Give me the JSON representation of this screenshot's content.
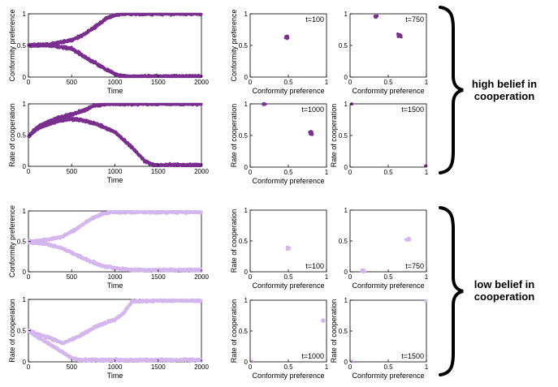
{
  "colors": {
    "high": "#7a2f8e",
    "low": "#d4b6ee"
  },
  "labels": {
    "time": "Time",
    "conformity_preference": "Conformity preference",
    "rate_of_cooperation": "Rate of cooperation"
  },
  "groups": [
    {
      "label_line1": "high belief in",
      "label_line2": "cooperation"
    },
    {
      "label_line1": "low belief in",
      "label_line2": "cooperation"
    }
  ],
  "chart_data": [
    {
      "type": "scatter",
      "group": "high",
      "ylabel": "Conformity preference",
      "xlabel": "Time",
      "xlim": [
        0,
        2000
      ],
      "ylim": [
        0,
        1
      ],
      "xticks": [
        "0",
        "500",
        "1000",
        "1500",
        "2000"
      ],
      "yticks": [
        "0",
        "0.5",
        "1"
      ],
      "series": [
        {
          "x": [
            0,
            250,
            500,
            650,
            800,
            900,
            1000,
            1100,
            2000
          ],
          "y": [
            0.5,
            0.52,
            0.58,
            0.68,
            0.82,
            0.93,
            0.98,
            1.0,
            1.0
          ]
        },
        {
          "x": [
            0,
            250,
            500,
            650,
            800,
            900,
            1000,
            1050,
            1100,
            2000
          ],
          "y": [
            0.5,
            0.5,
            0.45,
            0.32,
            0.2,
            0.12,
            0.05,
            0.02,
            0.01,
            0.01
          ]
        }
      ]
    },
    {
      "type": "scatter",
      "group": "high",
      "ylabel": "Conformity preference",
      "xlabel": "Conformity preference",
      "annotation": "t=100",
      "xlim": [
        0,
        1
      ],
      "ylim": [
        0,
        1
      ],
      "xticks": [
        "0",
        "0.5",
        "1"
      ],
      "yticks": [
        "0",
        "0.5",
        "1"
      ],
      "series": [
        {
          "clusters": [
            {
              "x": 0.48,
              "y": 0.63,
              "spread": 0.04,
              "count": 18
            }
          ]
        }
      ]
    },
    {
      "type": "scatter",
      "group": "high",
      "ylabel": "",
      "xlabel": "Conformity preference",
      "annotation": "t=750",
      "xlim": [
        0,
        1
      ],
      "ylim": [
        0,
        1
      ],
      "xticks": [
        "0",
        "0.5",
        "1"
      ],
      "yticks": [
        "0",
        "0.5",
        "1"
      ],
      "series": [
        {
          "clusters": [
            {
              "x": 0.34,
              "y": 0.96,
              "spread": 0.04,
              "count": 10
            },
            {
              "x": 0.65,
              "y": 0.66,
              "spread": 0.05,
              "count": 18
            }
          ]
        }
      ]
    },
    {
      "type": "scatter",
      "group": "high",
      "ylabel": "Rate of cooperation",
      "xlabel": "Time",
      "xlim": [
        0,
        2000
      ],
      "ylim": [
        0,
        1
      ],
      "xticks": [
        "0",
        "500",
        "1000",
        "1500",
        "2000"
      ],
      "yticks": [
        "0",
        "0.5",
        "1"
      ],
      "series": [
        {
          "x": [
            0,
            100,
            200,
            350,
            500,
            650,
            750,
            900,
            1100,
            2000
          ],
          "y": [
            0.48,
            0.62,
            0.7,
            0.78,
            0.83,
            0.9,
            0.97,
            1.0,
            1.0,
            1.0
          ]
        },
        {
          "x": [
            0,
            100,
            200,
            350,
            500,
            650,
            800,
            1000,
            1200,
            1350,
            1450,
            2000
          ],
          "y": [
            0.48,
            0.6,
            0.66,
            0.73,
            0.76,
            0.73,
            0.67,
            0.55,
            0.3,
            0.08,
            0.02,
            0.02
          ]
        }
      ]
    },
    {
      "type": "scatter",
      "group": "high",
      "ylabel": "Rate of cooperation",
      "xlabel": "Conformity preference",
      "annotation": "t=1000",
      "xlim": [
        0,
        1
      ],
      "ylim": [
        0,
        1
      ],
      "xticks": [
        "0",
        "0.5",
        "1"
      ],
      "yticks": [
        "0",
        "0.5",
        "1"
      ],
      "series": [
        {
          "clusters": [
            {
              "x": 0.18,
              "y": 1.0,
              "spread": 0.04,
              "count": 10
            },
            {
              "x": 0.8,
              "y": 0.54,
              "spread": 0.04,
              "count": 18
            }
          ]
        }
      ]
    },
    {
      "type": "scatter",
      "group": "high",
      "ylabel": "Rate of cooperation",
      "xlabel": "",
      "annotation": "t=1500",
      "xlim": [
        0,
        1
      ],
      "ylim": [
        0,
        1
      ],
      "xticks": [
        "0",
        "0.5",
        "1"
      ],
      "yticks": [
        "0",
        "0.5",
        "1"
      ],
      "series": [
        {
          "clusters": [
            {
              "x": 0.02,
              "y": 1.0,
              "spread": 0.01,
              "count": 6
            },
            {
              "x": 0.99,
              "y": 0.02,
              "spread": 0.01,
              "count": 5
            }
          ]
        }
      ]
    },
    {
      "type": "scatter",
      "group": "low",
      "ylabel": "Conformity preference",
      "xlabel": "Time",
      "xlim": [
        0,
        2000
      ],
      "ylim": [
        0,
        1
      ],
      "xticks": [
        "0",
        "500",
        "1000",
        "1500",
        "2000"
      ],
      "yticks": [
        "0",
        "0.5",
        "1"
      ],
      "series": [
        {
          "x": [
            0,
            200,
            400,
            550,
            700,
            850,
            950,
            2000
          ],
          "y": [
            0.5,
            0.52,
            0.58,
            0.7,
            0.85,
            0.95,
            0.98,
            0.98
          ]
        },
        {
          "x": [
            0,
            200,
            400,
            550,
            700,
            850,
            1000,
            1200,
            2000
          ],
          "y": [
            0.48,
            0.46,
            0.38,
            0.28,
            0.18,
            0.1,
            0.06,
            0.03,
            0.03
          ]
        }
      ]
    },
    {
      "type": "scatter",
      "group": "low",
      "ylabel": "Rate of cooperation",
      "xlabel": "Conformity preference",
      "annotation": "t=100",
      "xlim": [
        0,
        1
      ],
      "ylim": [
        0,
        1
      ],
      "xticks": [
        "0",
        "0.5",
        "1"
      ],
      "yticks": [
        "0",
        "0.5",
        "1"
      ],
      "series": [
        {
          "clusters": [
            {
              "x": 0.5,
              "y": 0.38,
              "spread": 0.04,
              "count": 16
            }
          ]
        }
      ]
    },
    {
      "type": "scatter",
      "group": "low",
      "ylabel": "",
      "xlabel": "Conformity preference",
      "annotation": "t=750",
      "xlim": [
        0,
        1
      ],
      "ylim": [
        0,
        1
      ],
      "xticks": [
        "0",
        "0.5",
        "1"
      ],
      "yticks": [
        "0",
        "0.5",
        "1"
      ],
      "series": [
        {
          "clusters": [
            {
              "x": 0.17,
              "y": 0.01,
              "spread": 0.04,
              "count": 12
            },
            {
              "x": 0.76,
              "y": 0.53,
              "spread": 0.04,
              "count": 18
            }
          ]
        }
      ]
    },
    {
      "type": "scatter",
      "group": "low",
      "ylabel": "Rate of cooperation",
      "xlabel": "Time",
      "xlim": [
        0,
        2000
      ],
      "ylim": [
        0,
        1
      ],
      "xticks": [
        "0",
        "500",
        "1000",
        "1500",
        "2000"
      ],
      "yticks": [
        "0",
        "0.5",
        "1"
      ],
      "series": [
        {
          "x": [
            0,
            100,
            250,
            400,
            600,
            800,
            1000,
            1100,
            1200,
            1500,
            2000
          ],
          "y": [
            0.5,
            0.45,
            0.38,
            0.3,
            0.42,
            0.58,
            0.68,
            0.78,
            0.97,
            0.98,
            0.98
          ]
        },
        {
          "x": [
            0,
            100,
            250,
            400,
            500,
            600,
            700,
            2000
          ],
          "y": [
            0.5,
            0.4,
            0.28,
            0.15,
            0.06,
            0.03,
            0.03,
            0.03
          ]
        }
      ]
    },
    {
      "type": "scatter",
      "group": "low",
      "ylabel": "Rate of cooperation",
      "xlabel": "Conformity preference",
      "annotation": "t=1000",
      "xlim": [
        0,
        1
      ],
      "ylim": [
        0,
        1
      ],
      "xticks": [
        "0",
        "0.5",
        "1"
      ],
      "yticks": [
        "0",
        "0.5",
        "1"
      ],
      "series": [
        {
          "clusters": [
            {
              "x": 0.02,
              "y": 0.01,
              "spread": 0.01,
              "count": 5
            },
            {
              "x": 0.96,
              "y": 0.67,
              "spread": 0.03,
              "count": 10
            }
          ]
        }
      ]
    },
    {
      "type": "scatter",
      "group": "low",
      "ylabel": "Rate of cooperation",
      "xlabel": "Conformity preference",
      "annotation": "t=1500",
      "xlim": [
        0,
        1
      ],
      "ylim": [
        0,
        1
      ],
      "xticks": [
        "0",
        "0.5",
        "1"
      ],
      "yticks": [
        "0",
        "0.5",
        "1"
      ],
      "series": [
        {
          "clusters": [
            {
              "x": 0.02,
              "y": 0.01,
              "spread": 0.01,
              "count": 5
            },
            {
              "x": 0.99,
              "y": 0.99,
              "spread": 0.01,
              "count": 4
            }
          ]
        }
      ]
    }
  ]
}
